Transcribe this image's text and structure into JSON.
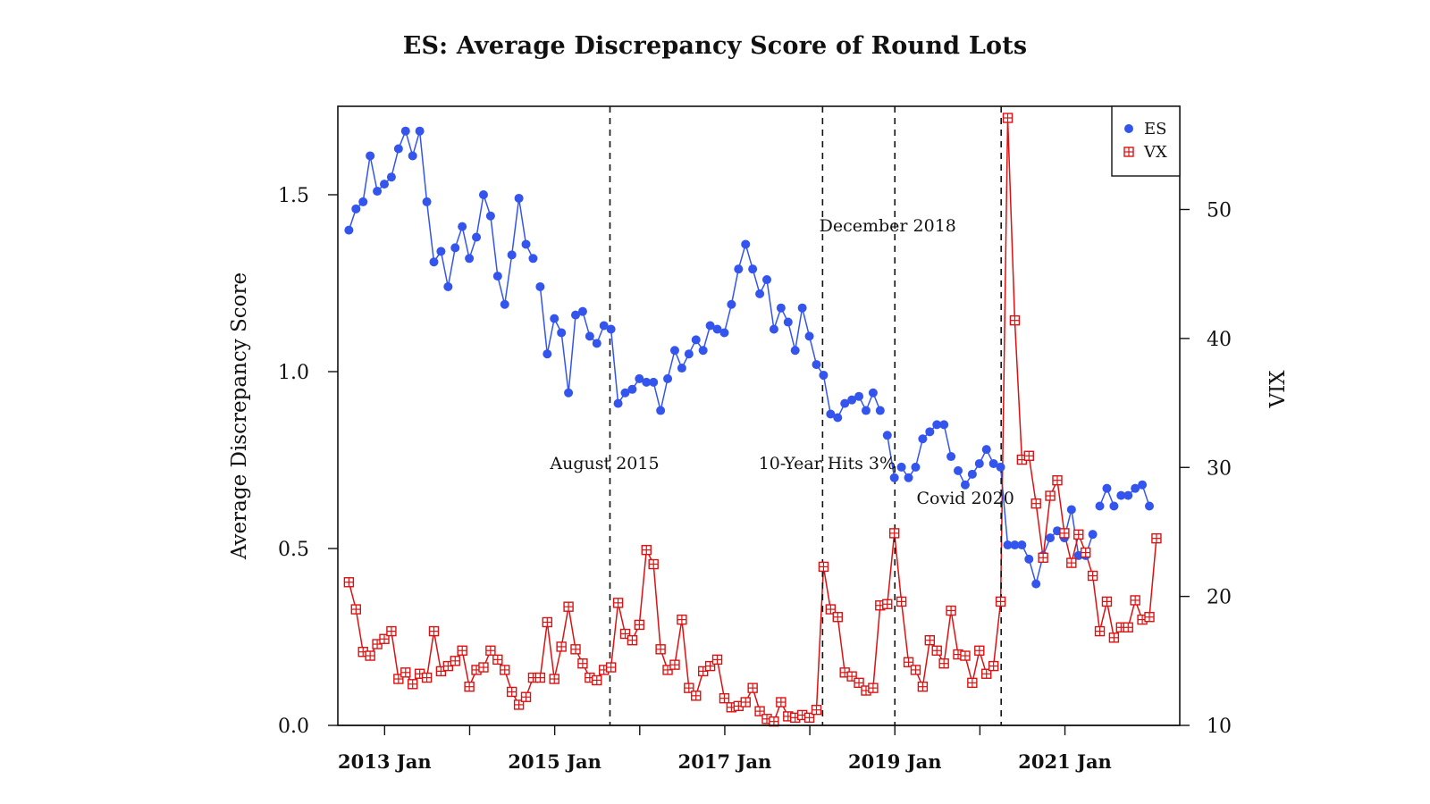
{
  "chart_data": {
    "type": "line",
    "title": "ES: Average Discrepancy Score of Round Lots",
    "ylabel": "Average Discrepancy Score",
    "y2label": "VIX",
    "xlabel": "",
    "ylim": [
      0,
      1.75
    ],
    "y2lim": [
      10,
      58
    ],
    "xlim": [
      2012.45,
      2022.35
    ],
    "x_ticks": [
      {
        "x": 2013.0,
        "label": "2013 Jan"
      },
      {
        "x": 2014.0,
        "label": ""
      },
      {
        "x": 2015.0,
        "label": "2015 Jan"
      },
      {
        "x": 2016.0,
        "label": ""
      },
      {
        "x": 2017.0,
        "label": "2017 Jan"
      },
      {
        "x": 2018.0,
        "label": ""
      },
      {
        "x": 2019.0,
        "label": "2019 Jan"
      },
      {
        "x": 2020.0,
        "label": ""
      },
      {
        "x": 2021.0,
        "label": "2021 Jan"
      }
    ],
    "y_ticks": [
      0.0,
      0.5,
      1.0,
      1.5
    ],
    "y_tick_labels": [
      "0.0",
      "0.5",
      "1.0",
      "1.5"
    ],
    "y2_ticks": [
      10,
      20,
      30,
      40,
      50
    ],
    "y2_tick_labels": [
      "10",
      "20",
      "30",
      "40",
      "50"
    ],
    "grid": false,
    "legend": {
      "position": "top-right",
      "entries": [
        "ES",
        "VX"
      ]
    },
    "events": [
      {
        "x": 2015.65,
        "label": "August 2015"
      },
      {
        "x": 2018.15,
        "label": "10-Year Hits 3%"
      },
      {
        "x": 2019.0,
        "label": "December 2018"
      },
      {
        "x": 2020.25,
        "label": "Covid 2020"
      }
    ],
    "series": [
      {
        "name": "ES",
        "axis": "left",
        "color": "#3355ee",
        "marker": "circle",
        "start": 2012.58,
        "step": 0.0833,
        "values": [
          1.4,
          1.46,
          1.48,
          1.61,
          1.51,
          1.53,
          1.55,
          1.63,
          1.68,
          1.61,
          1.68,
          1.48,
          1.31,
          1.34,
          1.24,
          1.35,
          1.41,
          1.32,
          1.38,
          1.5,
          1.44,
          1.27,
          1.19,
          1.33,
          1.49,
          1.36,
          1.32,
          1.24,
          1.05,
          1.15,
          1.11,
          0.94,
          1.16,
          1.17,
          1.1,
          1.08,
          1.13,
          1.12,
          0.91,
          0.94,
          0.95,
          0.98,
          0.97,
          0.97,
          0.89,
          0.98,
          1.06,
          1.01,
          1.05,
          1.09,
          1.06,
          1.13,
          1.12,
          1.11,
          1.19,
          1.29,
          1.36,
          1.29,
          1.22,
          1.26,
          1.12,
          1.18,
          1.14,
          1.06,
          1.18,
          1.1,
          1.02,
          0.99,
          0.88,
          0.87,
          0.91,
          0.92,
          0.93,
          0.89,
          0.94,
          0.89,
          0.82,
          0.7,
          0.73,
          0.7,
          0.73,
          0.81,
          0.83,
          0.85,
          0.85,
          0.76,
          0.72,
          0.68,
          0.71,
          0.74,
          0.78,
          0.74,
          0.73,
          0.51,
          0.51,
          0.51,
          0.47,
          0.4,
          0.48,
          0.53,
          0.55,
          0.53,
          0.61,
          0.48,
          0.48,
          0.54,
          0.62,
          0.67,
          0.62,
          0.65,
          0.65,
          0.67,
          0.68,
          0.62
        ],
        "gap_after": [
          26,
          75,
          77,
          85,
          105,
          108,
          111
        ]
      },
      {
        "name": "VX",
        "axis": "right",
        "color": "#dd1111",
        "marker": "boxplus",
        "start": 2012.58,
        "step": 0.0833,
        "values": [
          21.1,
          19.0,
          15.7,
          15.4,
          16.3,
          16.7,
          17.3,
          13.6,
          14.1,
          13.2,
          14.0,
          13.7,
          17.3,
          14.2,
          14.6,
          15.0,
          15.8,
          13.0,
          14.3,
          14.5,
          15.8,
          15.1,
          14.3,
          12.6,
          11.6,
          12.2,
          13.7,
          13.7,
          18.0,
          13.6,
          16.1,
          19.2,
          15.9,
          14.8,
          13.7,
          13.5,
          14.3,
          14.5,
          19.5,
          17.1,
          16.6,
          17.8,
          23.6,
          22.5,
          15.9,
          14.3,
          14.7,
          18.2,
          12.9,
          12.3,
          14.2,
          14.6,
          15.1,
          12.1,
          11.4,
          11.5,
          11.8,
          12.9,
          11.1,
          10.5,
          10.3,
          11.8,
          10.7,
          10.6,
          10.8,
          10.6,
          11.2,
          22.3,
          19.0,
          18.4,
          14.1,
          13.8,
          13.3,
          12.7,
          12.9,
          19.3,
          19.4,
          24.9,
          19.6,
          14.9,
          14.3,
          13.0,
          16.6,
          15.8,
          14.8,
          18.9,
          15.5,
          15.4,
          13.3,
          15.8,
          14.0,
          14.6,
          19.6,
          57.1,
          41.4,
          30.6,
          30.9,
          27.2,
          23.0,
          27.8,
          29.0,
          24.9,
          22.6,
          24.8,
          23.4,
          21.6,
          17.3,
          19.6,
          16.8,
          17.6,
          17.6,
          19.7,
          18.2,
          18.4,
          24.5
        ]
      }
    ]
  }
}
